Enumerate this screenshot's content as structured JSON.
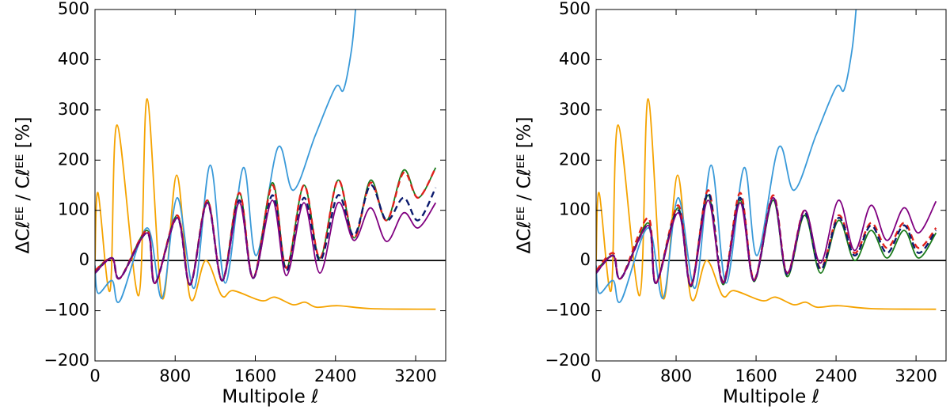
{
  "chart_data": [
    {
      "type": "line",
      "xlabel": "Multipole ℓ",
      "ylabel": "ΔCℓᴱᴱ / Cℓᴱᴱ [%]",
      "xlim": [
        0,
        3500
      ],
      "ylim": [
        -200,
        500
      ],
      "xticks": [
        0,
        800,
        1600,
        2400,
        3200
      ],
      "yticks": [
        {
          "value": -200,
          "label": "−200"
        },
        {
          "value": -100,
          "label": "−100"
        },
        0,
        100,
        200,
        300,
        400,
        500
      ],
      "hline": 0,
      "series": [
        {
          "color": "#f5a300",
          "dashed": false,
          "x": [
            0,
            30,
            150,
            220,
            435,
            520,
            670,
            815,
            950,
            1105,
            1265,
            1380,
            1660,
            1795,
            1975,
            2095,
            2210,
            2425,
            2765,
            3400
          ],
          "values": [
            0,
            135,
            -60,
            270,
            -70,
            322,
            -75,
            170,
            -75,
            0,
            -70,
            -60,
            -80,
            -73,
            -88,
            -83,
            -93,
            -90,
            -96,
            -97
          ]
        },
        {
          "color": "#3a9ad9",
          "dashed": false,
          "x": [
            0,
            30,
            170,
            250,
            520,
            670,
            820,
            990,
            1150,
            1300,
            1480,
            1610,
            1825,
            1980,
            2200,
            2400,
            2480,
            2560,
            2600
          ],
          "values": [
            -10,
            -65,
            -40,
            -80,
            65,
            -75,
            125,
            -55,
            190,
            -45,
            185,
            10,
            225,
            140,
            250,
            345,
            340,
            420,
            500
          ]
        },
        {
          "color": "#1a7a1a",
          "dashed": false,
          "x": [
            0,
            170,
            250,
            520,
            600,
            820,
            950,
            1120,
            1270,
            1440,
            1580,
            1770,
            1910,
            2085,
            2245,
            2425,
            2585,
            2750,
            2910,
            3080,
            3225,
            3400
          ],
          "values": [
            -20,
            5,
            -35,
            60,
            -45,
            90,
            -48,
            120,
            -40,
            135,
            -35,
            155,
            -15,
            150,
            5,
            160,
            45,
            160,
            80,
            180,
            125,
            185
          ]
        },
        {
          "color": "#e0201b",
          "dashed": true,
          "x": [
            0,
            170,
            250,
            520,
            600,
            820,
            950,
            1120,
            1270,
            1440,
            1580,
            1770,
            1910,
            2085,
            2245,
            2425,
            2585,
            2750,
            2910,
            3080,
            3225,
            3400
          ],
          "values": [
            -20,
            5,
            -35,
            60,
            -45,
            90,
            -48,
            120,
            -40,
            135,
            -35,
            150,
            -15,
            150,
            5,
            160,
            45,
            155,
            80,
            175,
            125,
            185
          ]
        },
        {
          "color": "#0b1a6e",
          "dashed": true,
          "x": [
            0,
            170,
            250,
            520,
            600,
            820,
            950,
            1120,
            1270,
            1440,
            1580,
            1770,
            1910,
            2085,
            2245,
            2425,
            2585,
            2750,
            2910,
            3080,
            3225,
            3400
          ],
          "values": [
            -25,
            5,
            -35,
            55,
            -45,
            85,
            -48,
            115,
            -40,
            120,
            -35,
            130,
            -20,
            125,
            0,
            130,
            50,
            150,
            80,
            125,
            80,
            145
          ]
        },
        {
          "color": "#800080",
          "dashed": false,
          "x": [
            0,
            170,
            250,
            520,
            600,
            820,
            950,
            1120,
            1270,
            1440,
            1580,
            1770,
            1910,
            2085,
            2245,
            2425,
            2585,
            2750,
            2910,
            3080,
            3225,
            3400
          ],
          "values": [
            -25,
            5,
            -35,
            55,
            -45,
            85,
            -48,
            115,
            -40,
            115,
            -35,
            120,
            -30,
            115,
            -25,
            115,
            40,
            105,
            38,
            95,
            65,
            115
          ]
        }
      ]
    },
    {
      "type": "line",
      "xlabel": "Multipole ℓ",
      "ylabel": "ΔCℓᴱᴱ / Cℓᴱᴱ [%]",
      "xlim": [
        0,
        3500
      ],
      "ylim": [
        -200,
        500
      ],
      "xticks": [
        0,
        800,
        1600,
        2400,
        3200
      ],
      "yticks": [
        {
          "value": -200,
          "label": "−200"
        },
        {
          "value": -100,
          "label": "−100"
        },
        0,
        100,
        200,
        300,
        400,
        500
      ],
      "hline": 0,
      "series": [
        {
          "color": "#f5a300",
          "dashed": false,
          "x": [
            0,
            30,
            150,
            220,
            435,
            520,
            670,
            815,
            950,
            1105,
            1265,
            1380,
            1660,
            1795,
            1975,
            2095,
            2210,
            2425,
            2765,
            3400
          ],
          "values": [
            0,
            135,
            -60,
            270,
            -70,
            322,
            -75,
            170,
            -75,
            0,
            -70,
            -60,
            -80,
            -73,
            -88,
            -83,
            -93,
            -90,
            -96,
            -97
          ]
        },
        {
          "color": "#3a9ad9",
          "dashed": false,
          "x": [
            0,
            30,
            170,
            250,
            520,
            670,
            820,
            990,
            1150,
            1300,
            1480,
            1610,
            1825,
            1980,
            2200,
            2400,
            2480,
            2560,
            2600
          ],
          "values": [
            -10,
            -65,
            -40,
            -80,
            65,
            -75,
            125,
            -55,
            190,
            -45,
            185,
            10,
            225,
            140,
            250,
            345,
            340,
            420,
            500
          ]
        },
        {
          "color": "#1a7a1a",
          "dashed": false,
          "x": [
            0,
            170,
            250,
            520,
            600,
            820,
            950,
            1120,
            1270,
            1440,
            1580,
            1770,
            1910,
            2085,
            2245,
            2425,
            2585,
            2750,
            2910,
            3080,
            3225,
            3400
          ],
          "values": [
            -20,
            10,
            -35,
            75,
            -45,
            105,
            -52,
            130,
            -48,
            120,
            -42,
            120,
            -32,
            90,
            -25,
            80,
            0,
            60,
            5,
            60,
            5,
            55
          ]
        },
        {
          "color": "#e0201b",
          "dashed": true,
          "x": [
            0,
            170,
            250,
            520,
            600,
            820,
            950,
            1120,
            1270,
            1440,
            1580,
            1770,
            1910,
            2085,
            2245,
            2425,
            2585,
            2750,
            2910,
            3080,
            3225,
            3400
          ],
          "values": [
            -20,
            15,
            -35,
            85,
            -45,
            110,
            -48,
            140,
            -42,
            135,
            -38,
            130,
            -25,
            100,
            -15,
            90,
            15,
            75,
            25,
            75,
            25,
            65
          ]
        },
        {
          "color": "#0b1a6e",
          "dashed": true,
          "x": [
            0,
            170,
            250,
            520,
            600,
            820,
            950,
            1120,
            1270,
            1440,
            1580,
            1770,
            1910,
            2085,
            2245,
            2425,
            2585,
            2750,
            2910,
            3080,
            3225,
            3400
          ],
          "values": [
            -25,
            10,
            -35,
            70,
            -45,
            100,
            -50,
            135,
            -45,
            125,
            -40,
            125,
            -28,
            95,
            -18,
            85,
            10,
            70,
            15,
            70,
            15,
            60
          ]
        },
        {
          "color": "#800080",
          "dashed": false,
          "x": [
            0,
            170,
            250,
            520,
            600,
            820,
            950,
            1120,
            1270,
            1440,
            1580,
            1770,
            1910,
            2085,
            2245,
            2425,
            2585,
            2750,
            2910,
            3080,
            3225,
            3400
          ],
          "values": [
            -25,
            10,
            -35,
            70,
            -45,
            95,
            -50,
            120,
            -45,
            115,
            -40,
            125,
            -25,
            100,
            -5,
            120,
            20,
            110,
            40,
            105,
            55,
            118
          ]
        }
      ]
    }
  ]
}
